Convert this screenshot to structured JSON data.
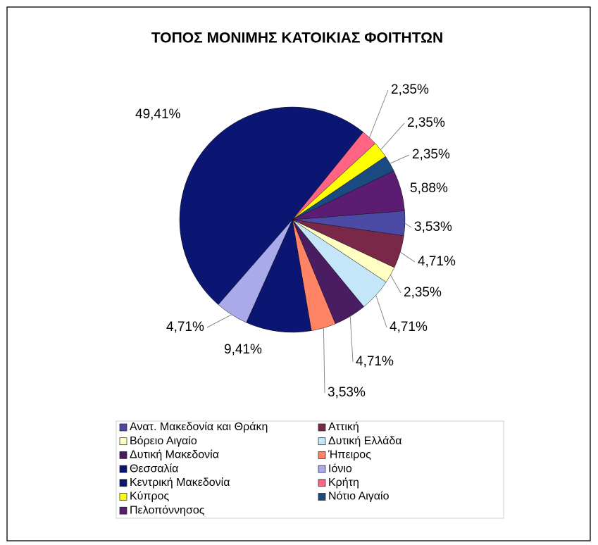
{
  "chart_data": {
    "type": "pie",
    "title": "ΤΟΠΟΣ ΜΟΝΙΜΗΣ ΚΑΤΟΙΚΙΑΣ ΦΟΙΤΗΤΩΝ",
    "categories": [
      "Ανατ. Μακεδονία και Θράκη",
      "Αττική",
      "Βόρειο Αιγαίο",
      "Δυτική Ελλάδα",
      "Δυτική Μακεδονία",
      "Ήπειρος",
      "Θεσσαλία",
      "Ιόνιο",
      "Κεντρική Μακεδονία",
      "Κρήτη",
      "Κύπρος",
      "Νότιο Αιγαίο",
      "Πελοπόννησος"
    ],
    "values": [
      3.53,
      4.71,
      2.35,
      4.71,
      4.71,
      3.53,
      9.41,
      4.71,
      49.41,
      2.35,
      2.35,
      2.35,
      5.88
    ],
    "value_labels": [
      "3,53%",
      "4,71%",
      "2,35%",
      "4,71%",
      "4,71%",
      "3,53%",
      "9,41%",
      "4,71%",
      "49,41%",
      "2,35%",
      "2,35%",
      "2,35%",
      "5,88%"
    ],
    "colors": [
      "#4b4ba6",
      "#7a2848",
      "#ffffc4",
      "#c4e6f8",
      "#4a1c62",
      "#ff8466",
      "#0b1572",
      "#aaaaea",
      "#0b1572",
      "#ff6485",
      "#ffff00",
      "#1b4a82",
      "#5b1c72"
    ],
    "legend": "bottom"
  }
}
